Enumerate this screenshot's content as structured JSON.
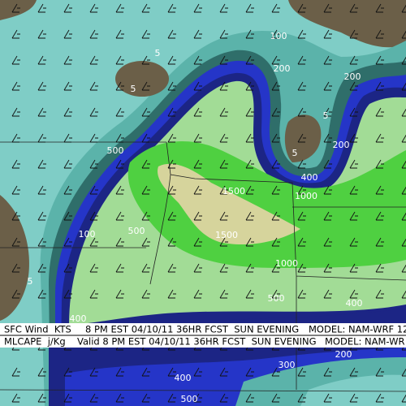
{
  "map": {
    "contour_labels": [
      "100",
      "5",
      "5",
      "200",
      "200",
      "5",
      "500",
      "5",
      "200",
      "400",
      "1500",
      "1000",
      "100",
      "500",
      "1500",
      "1000",
      "5",
      "500",
      "400",
      "400",
      "200",
      "300",
      "400",
      "500"
    ],
    "caption": [
      {
        "field": "SFC Wind  KTS",
        "time": "8 PM EST 04/10/11 36HR FCST  SUN EVENING",
        "model": "MODEL: NAM-WRF 12"
      },
      {
        "field": "MLCAPE  j/Kg",
        "time": "Valid 8 PM EST 04/10/11 36HR FCST  SUN EVENING",
        "model": "MODEL: NAM-WR"
      }
    ]
  }
}
